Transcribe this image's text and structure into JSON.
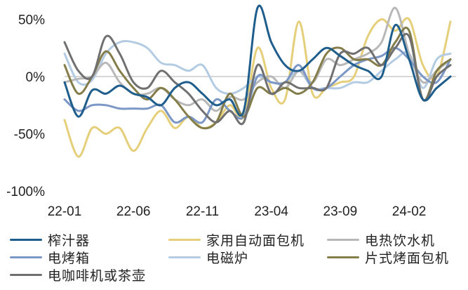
{
  "chart_data": {
    "type": "line",
    "title": "",
    "xlabel": "",
    "ylabel": "",
    "ylim": [
      -100,
      60
    ],
    "yticks": [
      50,
      0,
      -50,
      -100
    ],
    "ytick_labels": [
      "50%",
      "0%",
      "-50%",
      "-100%"
    ],
    "xtick_labels": [
      "22-01",
      "22-06",
      "22-11",
      "23-04",
      "23-09",
      "24-02"
    ],
    "grid": false,
    "legend_position": "bottom",
    "x": [
      "22-01",
      "22-02",
      "22-03",
      "22-04",
      "22-05",
      "22-06",
      "22-07",
      "22-08",
      "22-09",
      "22-10",
      "22-11",
      "22-12",
      "23-01",
      "23-02",
      "23-03",
      "23-04",
      "23-05",
      "23-06",
      "23-07",
      "23-08",
      "23-09",
      "23-10",
      "23-11",
      "23-12",
      "24-01",
      "24-02",
      "24-03",
      "24-04",
      "24-05"
    ],
    "series": [
      {
        "name": "榨汁器",
        "color": "#1f5d8c",
        "values": [
          -5,
          -35,
          -12,
          -15,
          -8,
          -15,
          -18,
          -25,
          -10,
          -5,
          -15,
          -25,
          -20,
          -30,
          60,
          30,
          10,
          5,
          15,
          25,
          18,
          10,
          5,
          0,
          45,
          15,
          -20,
          -10,
          0
        ]
      },
      {
        "name": "家用自动面包机",
        "color": "#e6cf7a",
        "values": [
          -38,
          -70,
          -45,
          -50,
          -45,
          -65,
          -45,
          -30,
          -45,
          -35,
          -45,
          -40,
          -25,
          -35,
          25,
          -10,
          -20,
          48,
          -15,
          -10,
          -5,
          0,
          35,
          50,
          40,
          50,
          10,
          0,
          48
        ]
      },
      {
        "name": "电热饮水机",
        "color": "#b8b8b8",
        "values": [
          -5,
          -2,
          0,
          12,
          -5,
          -15,
          -15,
          -10,
          -20,
          -25,
          -20,
          -30,
          -18,
          -20,
          -5,
          0,
          -10,
          5,
          -5,
          15,
          10,
          15,
          20,
          30,
          60,
          20,
          -5,
          5,
          15
        ]
      },
      {
        "name": "电烤箱",
        "color": "#7b97c6",
        "values": [
          -20,
          -30,
          -25,
          -25,
          -28,
          -28,
          -28,
          -25,
          -40,
          -35,
          -40,
          -20,
          -30,
          -35,
          0,
          -5,
          -5,
          10,
          -10,
          -10,
          0,
          10,
          15,
          18,
          25,
          15,
          0,
          -5,
          15
        ]
      },
      {
        "name": "电磁炉",
        "color": "#b4cce3",
        "values": [
          20,
          -5,
          -3,
          20,
          30,
          30,
          25,
          12,
          10,
          5,
          10,
          -10,
          -15,
          -10,
          0,
          -5,
          -5,
          5,
          -10,
          -10,
          -10,
          -5,
          -5,
          5,
          15,
          20,
          -10,
          15,
          20
        ]
      },
      {
        "name": "片式烤面包机",
        "color": "#847d4a",
        "values": [
          10,
          -15,
          0,
          22,
          5,
          -10,
          -20,
          -10,
          -20,
          -35,
          -45,
          -40,
          -15,
          -35,
          -10,
          -15,
          -10,
          -15,
          -5,
          20,
          25,
          15,
          15,
          10,
          30,
          40,
          -20,
          5,
          15
        ]
      },
      {
        "name": "电咖啡机或茶壶",
        "color": "#707070",
        "values": [
          30,
          5,
          0,
          35,
          20,
          -5,
          -10,
          5,
          -5,
          -15,
          -30,
          -40,
          -30,
          -40,
          10,
          -15,
          -5,
          -10,
          -10,
          -10,
          20,
          20,
          25,
          10,
          25,
          35,
          -20,
          0,
          10
        ]
      }
    ]
  }
}
